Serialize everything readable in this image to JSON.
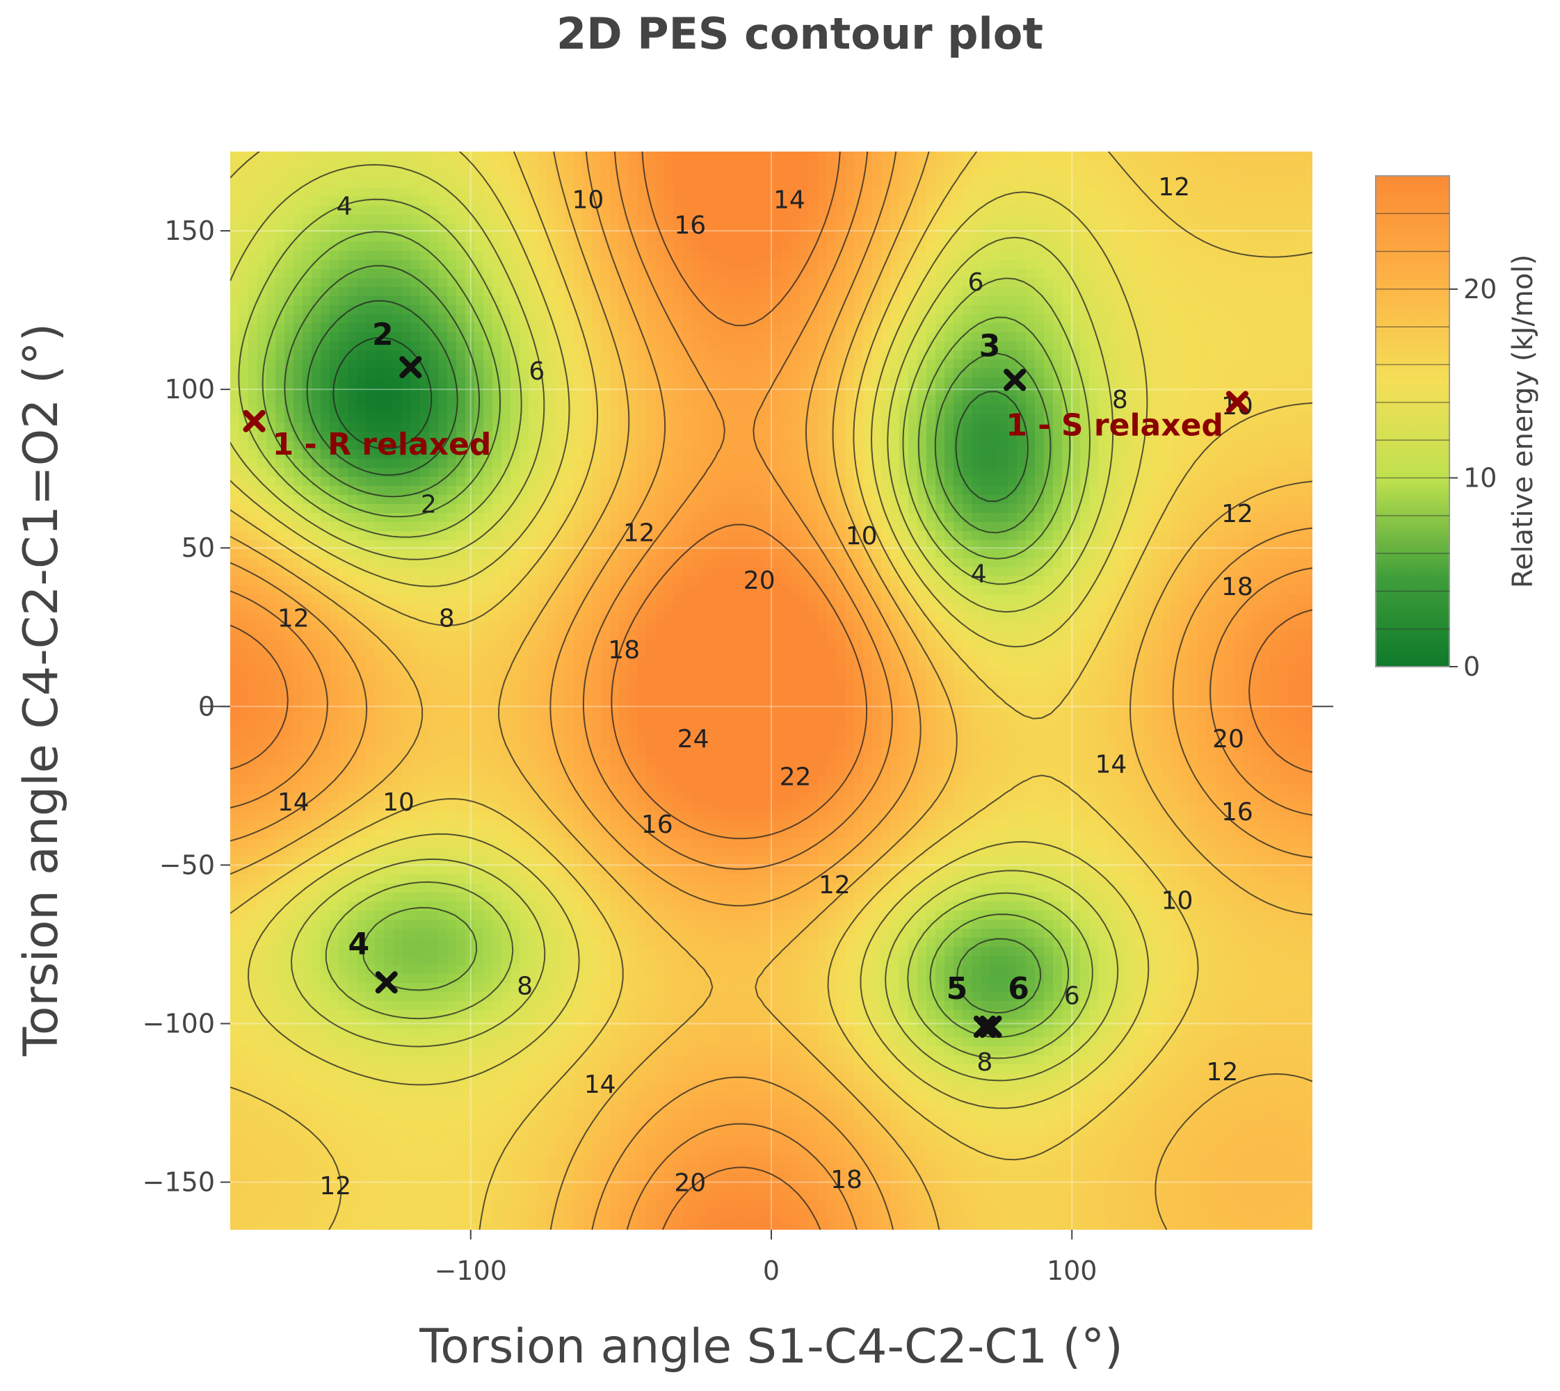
{
  "chart_data": {
    "type": "contour",
    "title": "2D PES contour plot",
    "xlabel": "Torsion angle S1-C4-C2-C1 (°)",
    "ylabel": "Torsion angle C4-C2-C1=O2 (°)",
    "xlim": [
      -180,
      180
    ],
    "ylim": [
      -165,
      175
    ],
    "x_ticks": [
      -100,
      0,
      100
    ],
    "x_tick_labels": [
      "−100",
      "0",
      "100"
    ],
    "y_ticks": [
      150,
      100,
      50,
      0,
      -50,
      -100,
      -150
    ],
    "y_tick_labels": [
      "150",
      "100",
      "50",
      "0",
      "−50",
      "−100",
      "−150"
    ],
    "grid": true,
    "colorbar": {
      "title": "Relative energy (kJ/mol)",
      "range": [
        0,
        26
      ],
      "ticks": [
        0,
        10,
        20
      ],
      "tick_labels": [
        "0",
        "10",
        "20"
      ],
      "colors": [
        "#0e7a2a",
        "#5cb043",
        "#c6e04f",
        "#f5dc55",
        "#fdb446",
        "#fc8a35"
      ]
    },
    "contour_levels": [
      2,
      4,
      6,
      8,
      10,
      12,
      14,
      16,
      18,
      20,
      22,
      24
    ],
    "contour_labels": [
      {
        "text": "4",
        "x": -142,
        "y": 158
      },
      {
        "text": "10",
        "x": -61,
        "y": 160
      },
      {
        "text": "16",
        "x": -27,
        "y": 152
      },
      {
        "text": "14",
        "x": 6,
        "y": 160
      },
      {
        "text": "12",
        "x": 134,
        "y": 164
      },
      {
        "text": "6",
        "x": 68,
        "y": 134
      },
      {
        "text": "6",
        "x": -78,
        "y": 106
      },
      {
        "text": "8",
        "x": 116,
        "y": 97
      },
      {
        "text": "10",
        "x": 155,
        "y": 95
      },
      {
        "text": "2",
        "x": -114,
        "y": 64
      },
      {
        "text": "12",
        "x": -44,
        "y": 55
      },
      {
        "text": "10",
        "x": 30,
        "y": 54
      },
      {
        "text": "12",
        "x": 155,
        "y": 61
      },
      {
        "text": "4",
        "x": 69,
        "y": 42
      },
      {
        "text": "20",
        "x": -4,
        "y": 40
      },
      {
        "text": "18",
        "x": 155,
        "y": 38
      },
      {
        "text": "12",
        "x": -159,
        "y": 28
      },
      {
        "text": "8",
        "x": -108,
        "y": 28
      },
      {
        "text": "18",
        "x": -49,
        "y": 18
      },
      {
        "text": "24",
        "x": -26,
        "y": -10
      },
      {
        "text": "22",
        "x": 8,
        "y": -22
      },
      {
        "text": "20",
        "x": 152,
        "y": -10
      },
      {
        "text": "14",
        "x": 113,
        "y": -18
      },
      {
        "text": "16",
        "x": 155,
        "y": -33
      },
      {
        "text": "14",
        "x": -159,
        "y": -30
      },
      {
        "text": "10",
        "x": -124,
        "y": -30
      },
      {
        "text": "16",
        "x": -38,
        "y": -37
      },
      {
        "text": "12",
        "x": 21,
        "y": -56
      },
      {
        "text": "10",
        "x": 135,
        "y": -61
      },
      {
        "text": "8",
        "x": -82,
        "y": -88
      },
      {
        "text": "6",
        "x": 100,
        "y": -91
      },
      {
        "text": "8",
        "x": 71,
        "y": -112
      },
      {
        "text": "12",
        "x": 150,
        "y": -115
      },
      {
        "text": "14",
        "x": -57,
        "y": -119
      },
      {
        "text": "20",
        "x": -27,
        "y": -150
      },
      {
        "text": "18",
        "x": 25,
        "y": -149
      },
      {
        "text": "12",
        "x": -145,
        "y": -151
      }
    ],
    "points": [
      {
        "label": "2",
        "x": -120,
        "y": 107,
        "color": "#111111"
      },
      {
        "label": "1 - R relaxed",
        "x": -172,
        "y": 90,
        "color": "#8b0000"
      },
      {
        "label": "3",
        "x": 81,
        "y": 103,
        "color": "#111111"
      },
      {
        "label": "1 - S relaxed",
        "x": 155,
        "y": 96,
        "color": "#8b0000"
      },
      {
        "label": "4",
        "x": -128,
        "y": -87,
        "color": "#111111"
      },
      {
        "label": "5",
        "x": 71,
        "y": -101,
        "color": "#111111"
      },
      {
        "label": "6",
        "x": 73,
        "y": -101,
        "color": "#111111"
      }
    ]
  }
}
